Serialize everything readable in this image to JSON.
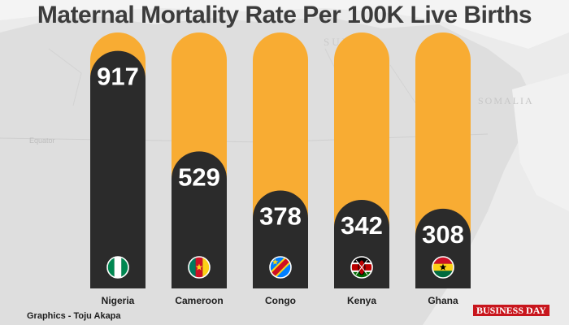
{
  "chart_data": {
    "type": "bar",
    "title": "Maternal Mortality Rate Per 100K Live Births",
    "categories": [
      "Nigeria",
      "Cameroon",
      "Congo",
      "Kenya",
      "Ghana"
    ],
    "values": [
      917,
      529,
      378,
      342,
      308
    ],
    "ylim": [
      0,
      1000
    ],
    "xlabel": "",
    "ylabel": "",
    "flags": [
      "nigeria-flag-icon",
      "cameroon-flag-icon",
      "congo-flag-icon",
      "kenya-flag-icon",
      "ghana-flag-icon"
    ],
    "colors": {
      "bar": "#2b2b2b",
      "track": "#f8ac33",
      "label": "#ffffff"
    }
  },
  "map_labels": [
    "SUDAN",
    "SOMALIA",
    "Equator"
  ],
  "footer": {
    "credit": "Graphics - Toju Akapa",
    "brand": "BUSINESS DAY"
  }
}
